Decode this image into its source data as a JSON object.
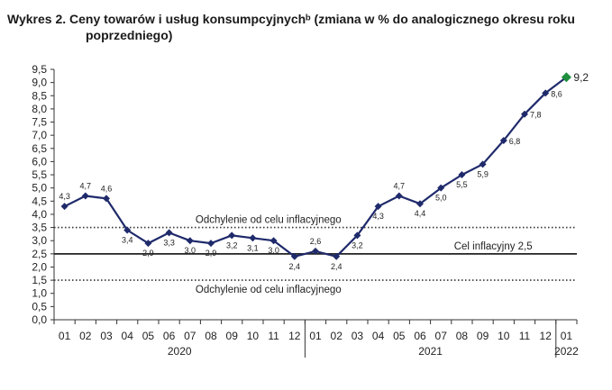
{
  "title_line1": "Wykres 2. Ceny towarów i usług konsumpcyjnychᵇ (zmiana w % do analogicznego okresu roku",
  "title_line2": "poprzedniego)",
  "chart_data": {
    "type": "line",
    "title": "Wykres 2. Ceny towarów i usług konsumpcyjnychᵇ (zmiana w % do analogicznego okresu roku poprzedniego)",
    "xlabel": "",
    "ylabel": "",
    "ylim": [
      0,
      9.5
    ],
    "ytick_step": 0.5,
    "grid": false,
    "categories": [
      "01",
      "02",
      "03",
      "04",
      "05",
      "06",
      "07",
      "08",
      "09",
      "10",
      "11",
      "12",
      "01",
      "02",
      "03",
      "04",
      "05",
      "06",
      "07",
      "08",
      "09",
      "10",
      "11",
      "12",
      "01"
    ],
    "year_groups": [
      {
        "label": "2020",
        "start": 0,
        "end": 11
      },
      {
        "label": "2021",
        "start": 12,
        "end": 23
      },
      {
        "label": "2022",
        "start": 24,
        "end": 24
      }
    ],
    "series": [
      {
        "values": [
          4.3,
          4.7,
          4.6,
          3.4,
          2.9,
          3.3,
          3.0,
          2.9,
          3.2,
          3.1,
          3.0,
          2.4,
          2.6,
          2.4,
          3.2,
          4.3,
          4.7,
          4.4,
          5.0,
          5.5,
          5.9,
          6.8,
          7.8,
          8.6,
          9.2
        ],
        "labels": [
          "4,3",
          "4,7",
          "4,6",
          "3,4",
          "2,9",
          "3,3",
          "3,0",
          "2,9",
          "3,2",
          "3,1",
          "3,0",
          "2,4",
          "2,6",
          "2,4",
          "3,2",
          "4,3",
          "4,7",
          "4,4",
          "5,0",
          "5,5",
          "5,9",
          "6,8",
          "7,8",
          "8,6",
          "9,2"
        ],
        "label_pos": [
          "above",
          "above",
          "above",
          "below",
          "below",
          "below",
          "below",
          "below",
          "below",
          "below",
          "below",
          "below",
          "above",
          "below",
          "below",
          "below",
          "above",
          "below",
          "below",
          "below",
          "below",
          "right",
          "right",
          "right",
          "right"
        ],
        "color": "#1f2a6b",
        "last_point_color": "#1e8f3e"
      }
    ],
    "reference_lines": [
      {
        "value": 2.5,
        "style": "solid",
        "label": "Cel inflacyjny 2,5"
      },
      {
        "value": 3.5,
        "style": "dotted",
        "label": "Odchylenie od celu inflacyjnego"
      },
      {
        "value": 1.5,
        "style": "dotted",
        "label": "Odchylenie od celu inflacyjnego"
      }
    ]
  }
}
